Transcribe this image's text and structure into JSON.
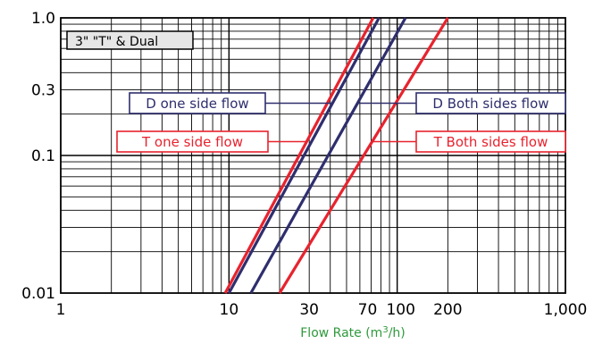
{
  "chart_data": {
    "type": "line",
    "title": "3\" \"T\" & Dual",
    "xlabel": "Flow Rate (m³/h)",
    "ylabel": "",
    "x_scale": "log",
    "y_scale": "log",
    "xlim": [
      1,
      1000
    ],
    "ylim": [
      0.01,
      1.0
    ],
    "x_tick_labels": [
      {
        "value": 1,
        "label": "1"
      },
      {
        "value": 10,
        "label": "10"
      },
      {
        "value": 30,
        "label": "30"
      },
      {
        "value": 70,
        "label": "70"
      },
      {
        "value": 100,
        "label": "100"
      },
      {
        "value": 200,
        "label": "200"
      },
      {
        "value": 1000,
        "label": "1,000"
      }
    ],
    "y_tick_labels": [
      {
        "value": 0.01,
        "label": "0.01"
      },
      {
        "value": 0.1,
        "label": "0.1"
      },
      {
        "value": 0.3,
        "label": "0.3"
      },
      {
        "value": 1.0,
        "label": "1.0"
      }
    ],
    "grid": true,
    "series": [
      {
        "name": "T one side flow",
        "color": "#e8232e",
        "x": [
          9.5,
          72
        ],
        "y": [
          0.01,
          1.0
        ]
      },
      {
        "name": "D one side flow",
        "color": "#2e2e6e",
        "x": [
          10,
          78
        ],
        "y": [
          0.01,
          1.0
        ]
      },
      {
        "name": "D Both sides flow",
        "color": "#2e2e6e",
        "x": [
          13.5,
          112
        ],
        "y": [
          0.01,
          1.0
        ]
      },
      {
        "name": "T Both sides flow",
        "color": "#e8232e",
        "x": [
          20,
          200
        ],
        "y": [
          0.01,
          1.0
        ]
      }
    ],
    "legend": [
      {
        "label": "D one side flow",
        "color": "#2e2e6e",
        "points_to": 1
      },
      {
        "label": "T one side flow",
        "color": "#e8232e",
        "points_to": 0
      },
      {
        "label": "D Both sides flow",
        "color": "#2e2e6e",
        "points_to": 2
      },
      {
        "label": "T Both sides flow",
        "color": "#e8232e",
        "points_to": 3
      }
    ],
    "colors": {
      "xlabel": "#2e9a3c",
      "grid": "#000000",
      "title_box_fill": "#e6e6e6"
    }
  }
}
